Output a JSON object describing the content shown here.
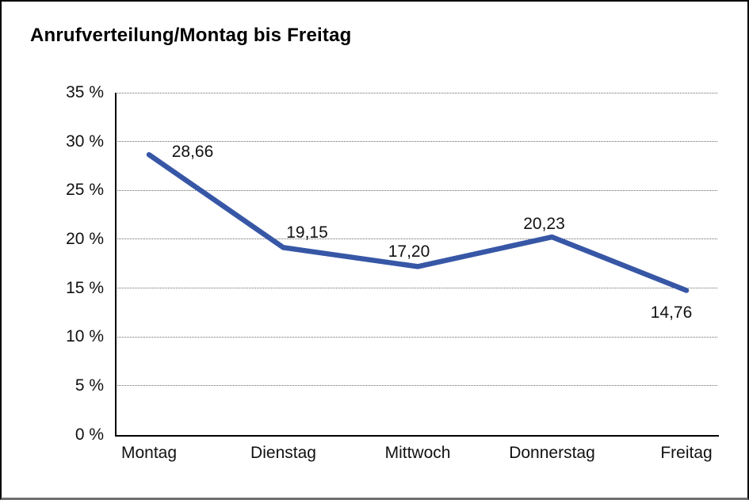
{
  "title": "Anrufverteilung/Montag bis Freitag",
  "chart_data": {
    "type": "line",
    "title": "Anrufverteilung/Montag bis Freitag",
    "categories": [
      "Montag",
      "Dienstag",
      "Mittwoch",
      "Donnerstag",
      "Freitag"
    ],
    "values": [
      28.66,
      19.15,
      17.2,
      20.23,
      14.76
    ],
    "value_labels": [
      "28,66",
      "19,15",
      "17,20",
      "20,23",
      "14,76"
    ],
    "xlabel": "",
    "ylabel": "",
    "ylim": [
      0,
      35
    ],
    "ytick_step": 5,
    "ytick_labels": [
      "0 %",
      "5 %",
      "10 %",
      "15 %",
      "20 %",
      "25 %",
      "30 %",
      "35 %"
    ],
    "grid": "horizontal-dotted",
    "legend": "none",
    "line_color": "#3757a6",
    "label_color": "#111111",
    "axis_color": "#000000"
  }
}
